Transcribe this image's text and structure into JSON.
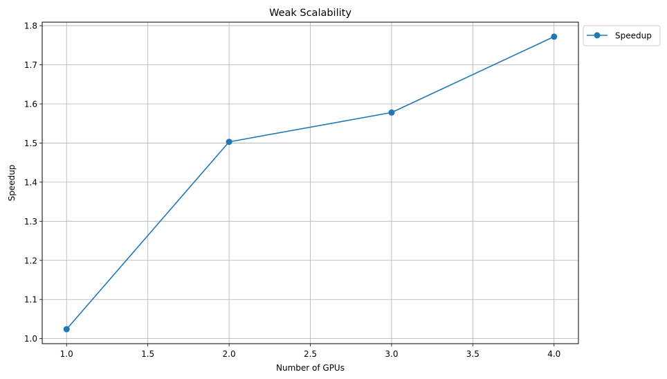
{
  "chart_data": {
    "type": "line",
    "title": "Weak Scalability",
    "xlabel": "Number of GPUs",
    "ylabel": "Speedup",
    "x": [
      1,
      2,
      3,
      4
    ],
    "series": [
      {
        "name": "Speedup",
        "values": [
          1.024,
          1.503,
          1.578,
          1.772
        ],
        "color": "#1f77b4",
        "marker": "circle"
      }
    ],
    "xlim": [
      0.85,
      4.15
    ],
    "ylim": [
      0.987,
      1.809
    ],
    "xticks": [
      1.0,
      1.5,
      2.0,
      2.5,
      3.0,
      3.5,
      4.0
    ],
    "xtick_labels": [
      "1.0",
      "1.5",
      "2.0",
      "2.5",
      "3.0",
      "3.5",
      "4.0"
    ],
    "yticks": [
      1.0,
      1.1,
      1.2,
      1.3,
      1.4,
      1.5,
      1.6,
      1.7,
      1.8
    ],
    "ytick_labels": [
      "1.0",
      "1.1",
      "1.2",
      "1.3",
      "1.4",
      "1.5",
      "1.6",
      "1.7",
      "1.8"
    ],
    "grid": true,
    "legend_position": "outside-top-right"
  }
}
